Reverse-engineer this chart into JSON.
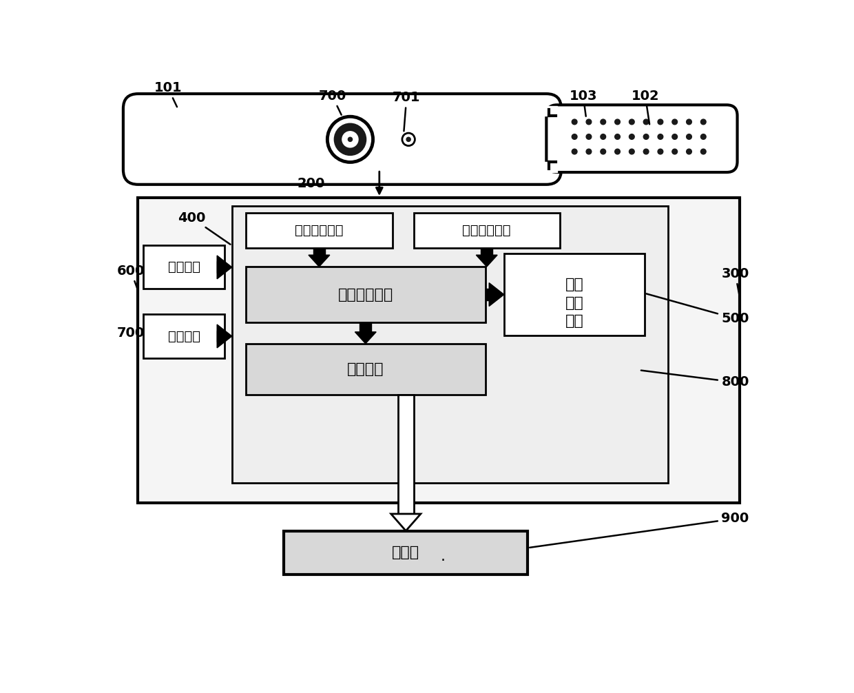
{
  "bg_color": "#ffffff",
  "labels": {
    "pressure": "压力检测装置",
    "status": "状态检测装置",
    "data_proc": "数据处理装置",
    "sound_1": "声音",
    "sound_2": "反馈",
    "sound_3": "装置",
    "comm": "通信装置",
    "power": "电源装置",
    "switch": "开关器件",
    "monitor": "监控端"
  }
}
